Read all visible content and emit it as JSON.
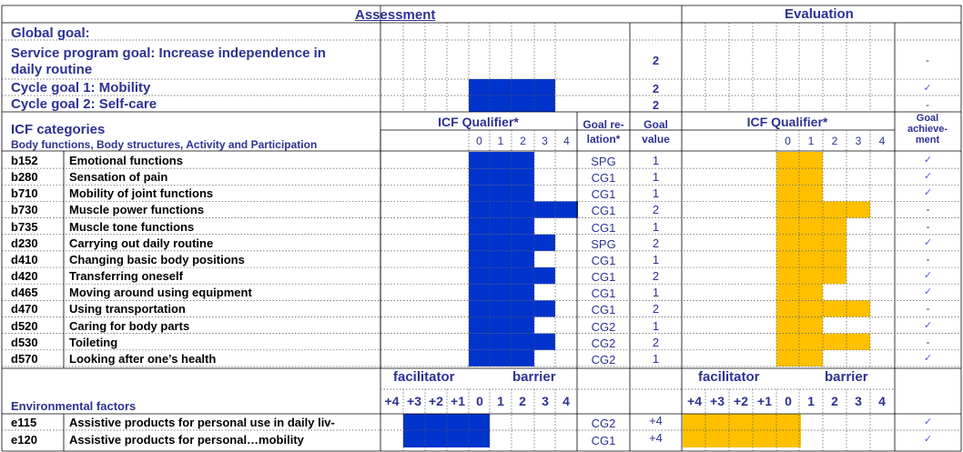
{
  "header": {
    "assessment": "Assessment",
    "evaluation": "Evaluation"
  },
  "goals": {
    "global": "Global goal:",
    "service_line1": "Service program goal: Increase independence in",
    "service_line2": "daily routine",
    "service_value": "2",
    "service_achievement": "-",
    "cycle1": "Cycle goal 1: Mobility",
    "cycle1_value": "2",
    "cycle1_achievement": "✓",
    "cycle2": "Cycle goal 2: Self-care",
    "cycle2_value": "2",
    "cycle2_achievement": "-"
  },
  "icf": {
    "title": "ICF categories",
    "subtitle": "Body functions, Body structures, Activity and Participation",
    "qualifier_label": "ICF Qualifier*",
    "goal_relation_l1": "Goal re-",
    "goal_relation_l2": "lation*",
    "goal_value_l1": "Goal",
    "goal_value_l2": "value",
    "goal_ach_l1": "Goal",
    "goal_ach_l2": "achieve-",
    "goal_ach_l3": "ment",
    "scale": [
      "0",
      "1",
      "2",
      "3",
      "4"
    ]
  },
  "rows": [
    {
      "code": "b152",
      "name": "Emotional functions",
      "a": 3,
      "rel": "SPG",
      "val": "1",
      "e": 2,
      "ach": "✓"
    },
    {
      "code": "b280",
      "name": "Sensation of pain",
      "a": 3,
      "rel": "CG1",
      "val": "1",
      "e": 2,
      "ach": "✓"
    },
    {
      "code": "b710",
      "name": "Mobility of joint functions",
      "a": 3,
      "rel": "CG1",
      "val": "1",
      "e": 2,
      "ach": "✓"
    },
    {
      "code": "b730",
      "name": "Muscle power functions",
      "a": 5,
      "rel": "CG1",
      "val": "2",
      "e": 4,
      "ach": "-"
    },
    {
      "code": "b735",
      "name": "Muscle tone functions",
      "a": 3,
      "rel": "CG1",
      "val": "1",
      "e": 3,
      "ach": "-"
    },
    {
      "code": "d230",
      "name": "Carrying out daily routine",
      "a": 4,
      "rel": "SPG",
      "val": "2",
      "e": 3,
      "ach": "✓"
    },
    {
      "code": "d410",
      "name": "Changing basic body positions",
      "a": 3,
      "rel": "CG1",
      "val": "1",
      "e": 3,
      "ach": "-"
    },
    {
      "code": "d420",
      "name": "Transferring oneself",
      "a": 4,
      "rel": "CG1",
      "val": "2",
      "e": 3,
      "ach": "✓"
    },
    {
      "code": "d465",
      "name": "Moving around using equipment",
      "a": 3,
      "rel": "CG1",
      "val": "1",
      "e": 2,
      "ach": "✓"
    },
    {
      "code": "d470",
      "name": "Using transportation",
      "a": 4,
      "rel": "CG1",
      "val": "2",
      "e": 4,
      "ach": "-"
    },
    {
      "code": "d520",
      "name": "Caring for body parts",
      "a": 3,
      "rel": "CG2",
      "val": "1",
      "e": 2,
      "ach": "✓"
    },
    {
      "code": "d530",
      "name": "Toileting",
      "a": 4,
      "rel": "CG2",
      "val": "2",
      "e": 4,
      "ach": "-"
    },
    {
      "code": "d570",
      "name": "Looking after one’s health",
      "a": 3,
      "rel": "CG2",
      "val": "1",
      "e": 2,
      "ach": "✓"
    }
  ],
  "env": {
    "title": "Environmental factors",
    "facilitator": "facilitator",
    "barrier": "barrier",
    "fac_scale": [
      "+4",
      "+3",
      "+2",
      "+1"
    ],
    "bar_scale": [
      "0",
      "1",
      "2",
      "3",
      "4"
    ],
    "rows": [
      {
        "code": "e115",
        "name": "Assistive products for personal use in daily liv-",
        "rel": "CG2",
        "val": "+4",
        "ach": "✓"
      },
      {
        "code": "e120",
        "name": "Assistive products for personal…mobility",
        "rel": "CG1",
        "val": "+4",
        "ach": "✓"
      }
    ]
  },
  "colors": {
    "assessment_bar": "#0033cc",
    "evaluation_bar": "#ffc000",
    "text": "#2e3192"
  }
}
